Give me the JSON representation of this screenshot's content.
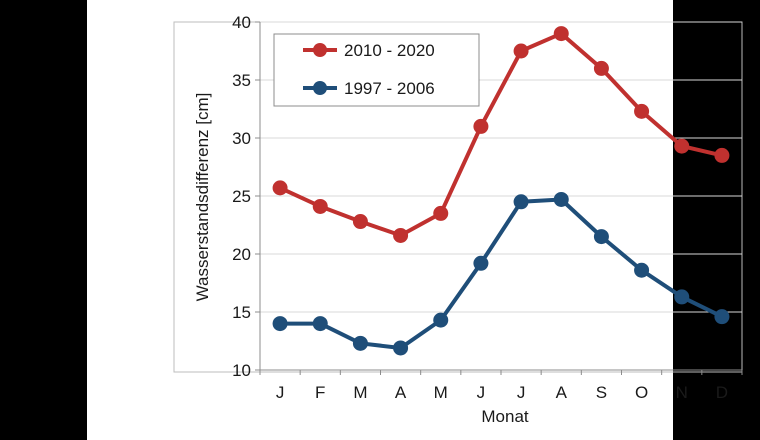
{
  "chart_data": {
    "type": "line",
    "title": "",
    "xlabel": "Monat",
    "ylabel": "Wasserstandsdifferenz [cm]",
    "categories": [
      "J",
      "F",
      "M",
      "A",
      "M",
      "J",
      "J",
      "A",
      "S",
      "O",
      "N",
      "D"
    ],
    "ylim": [
      10,
      40
    ],
    "yticks": [
      "10",
      "15",
      "20",
      "25",
      "30",
      "35",
      "40"
    ],
    "grid": true,
    "legend_position": "top-left",
    "series": [
      {
        "name": "2010 - 2020",
        "color": "#c0312f",
        "values": [
          25.7,
          24.1,
          22.8,
          21.6,
          23.5,
          31.0,
          37.5,
          39.0,
          36.0,
          32.3,
          29.3,
          28.5
        ]
      },
      {
        "name": "1997 - 2006",
        "color": "#1f4e79",
        "values": [
          14.0,
          14.0,
          12.3,
          11.9,
          14.3,
          19.2,
          24.5,
          24.7,
          21.5,
          18.6,
          16.3,
          14.6
        ]
      }
    ]
  }
}
